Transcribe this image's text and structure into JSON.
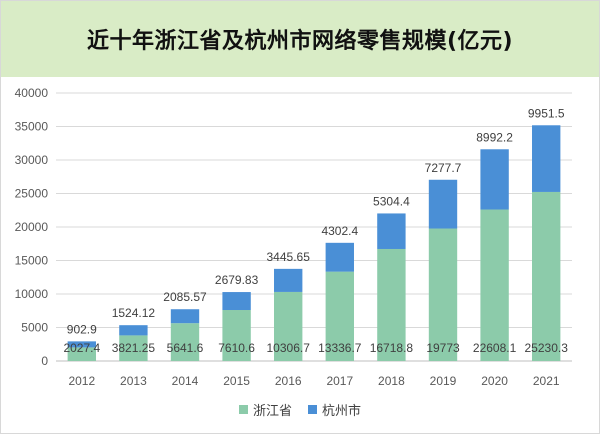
{
  "chart_data": {
    "type": "bar",
    "stacked": true,
    "title": "近十年浙江省及杭州市网络零售规模(亿元)",
    "categories": [
      "2012",
      "2013",
      "2014",
      "2015",
      "2016",
      "2017",
      "2018",
      "2019",
      "2020",
      "2021"
    ],
    "series": [
      {
        "name": "浙江省",
        "color": "#8ccbaa",
        "values": [
          2027.4,
          3821.25,
          5641.6,
          7610.6,
          10306.7,
          13336.7,
          16718.8,
          19773,
          22608.1,
          25230.3
        ],
        "labels": [
          "2027.4",
          "3821.25",
          "5641.6",
          "7610.6",
          "10306.7",
          "13336.7",
          "16718.8",
          "19773",
          "22608.1",
          "25230.3"
        ]
      },
      {
        "name": "杭州市",
        "color": "#4a8fd6",
        "values": [
          902.9,
          1524.12,
          2085.57,
          2679.83,
          3445.65,
          4302.4,
          5304.4,
          7277.7,
          8992.2,
          9951.5
        ],
        "labels": [
          "902.9",
          "1524.12",
          "2085.57",
          "2679.83",
          "3445.65",
          "4302.4",
          "5304.4",
          "7277.7",
          "8992.2",
          "9951.5"
        ]
      }
    ],
    "ylim": [
      0,
      40000
    ],
    "yticks": [
      0,
      5000,
      10000,
      15000,
      20000,
      25000,
      30000,
      35000,
      40000
    ],
    "yticklabels": [
      "0",
      "5000",
      "10000",
      "15000",
      "20000",
      "25000",
      "30000",
      "35000",
      "40000"
    ],
    "grid": true,
    "legend_position": "bottom"
  }
}
